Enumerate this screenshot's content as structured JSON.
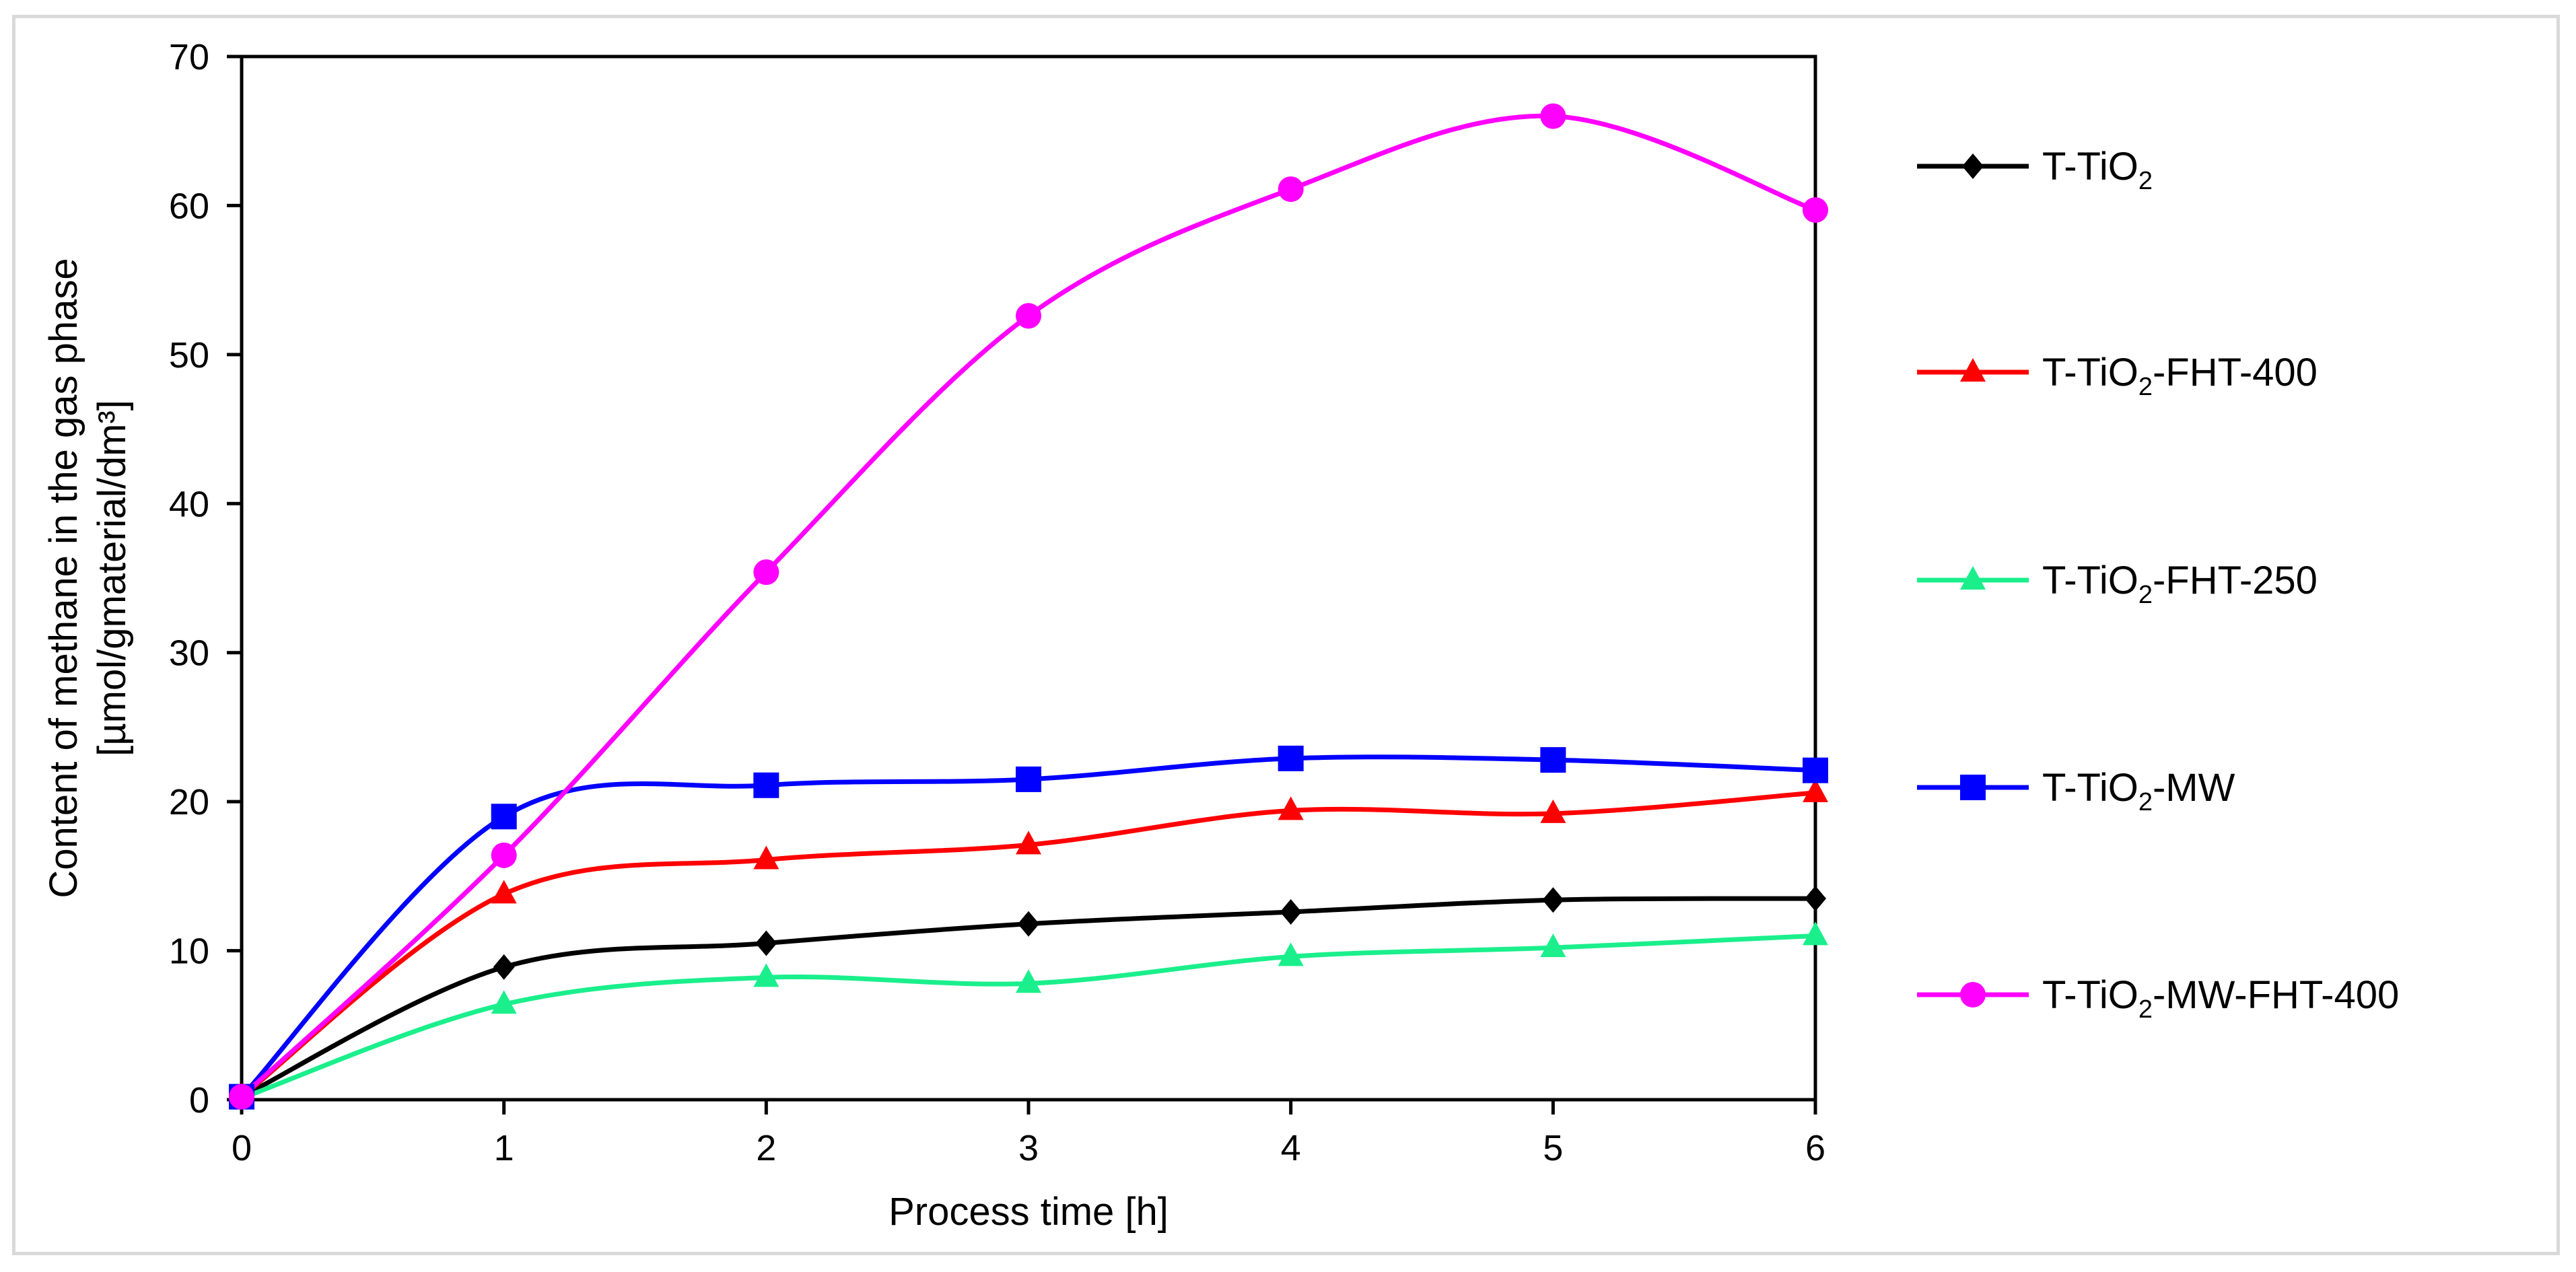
{
  "chart_data": {
    "type": "line",
    "title": "",
    "xlabel": "Process time [h]",
    "ylabel_line1": "Content of methane in the gas phase",
    "ylabel_line2": "[µmol/gmaterial/dm³]",
    "xlim": [
      0,
      6
    ],
    "ylim": [
      0,
      70
    ],
    "x_ticks": [
      "0",
      "1",
      "2",
      "3",
      "4",
      "5",
      "6"
    ],
    "y_ticks": [
      "0",
      "10",
      "20",
      "30",
      "40",
      "50",
      "60",
      "70"
    ],
    "grid": false,
    "smooth": true,
    "legend_position": "right",
    "x": [
      0,
      1,
      2,
      3,
      4,
      5,
      6
    ],
    "series": [
      {
        "name": "T-TiO2",
        "label": {
          "base": "T-TiO",
          "sub": "2",
          "rest": ""
        },
        "color": "#000000",
        "marker": "diamond",
        "values": [
          0.2,
          8.9,
          10.5,
          11.8,
          12.6,
          13.4,
          13.5
        ]
      },
      {
        "name": "T-TiO2-FHT-400",
        "label": {
          "base": "T-TiO",
          "sub": "2",
          "rest": "-FHT-400"
        },
        "color": "#ff0000",
        "marker": "triangle",
        "values": [
          0.2,
          13.8,
          16.1,
          17.1,
          19.4,
          19.2,
          20.6
        ]
      },
      {
        "name": "T-TiO2-FHT-250",
        "label": {
          "base": "T-TiO",
          "sub": "2",
          "rest": "-FHT-250"
        },
        "color": "#1aef8c",
        "marker": "triangle",
        "values": [
          0.1,
          6.4,
          8.2,
          7.8,
          9.6,
          10.2,
          11.0
        ]
      },
      {
        "name": "T-TiO2-MW",
        "label": {
          "base": "T-TiO",
          "sub": "2",
          "rest": "-MW"
        },
        "color": "#0000ff",
        "marker": "square",
        "values": [
          0.2,
          19.0,
          21.1,
          21.5,
          22.9,
          22.8,
          22.1
        ]
      },
      {
        "name": "T-TiO2-MW-FHT-400",
        "label": {
          "base": "T-TiO",
          "sub": "2",
          "rest": "-MW-FHT-400"
        },
        "color": "#ff00ff",
        "marker": "circle",
        "values": [
          0.2,
          16.4,
          35.4,
          52.6,
          61.1,
          66.0,
          59.7
        ]
      }
    ]
  }
}
